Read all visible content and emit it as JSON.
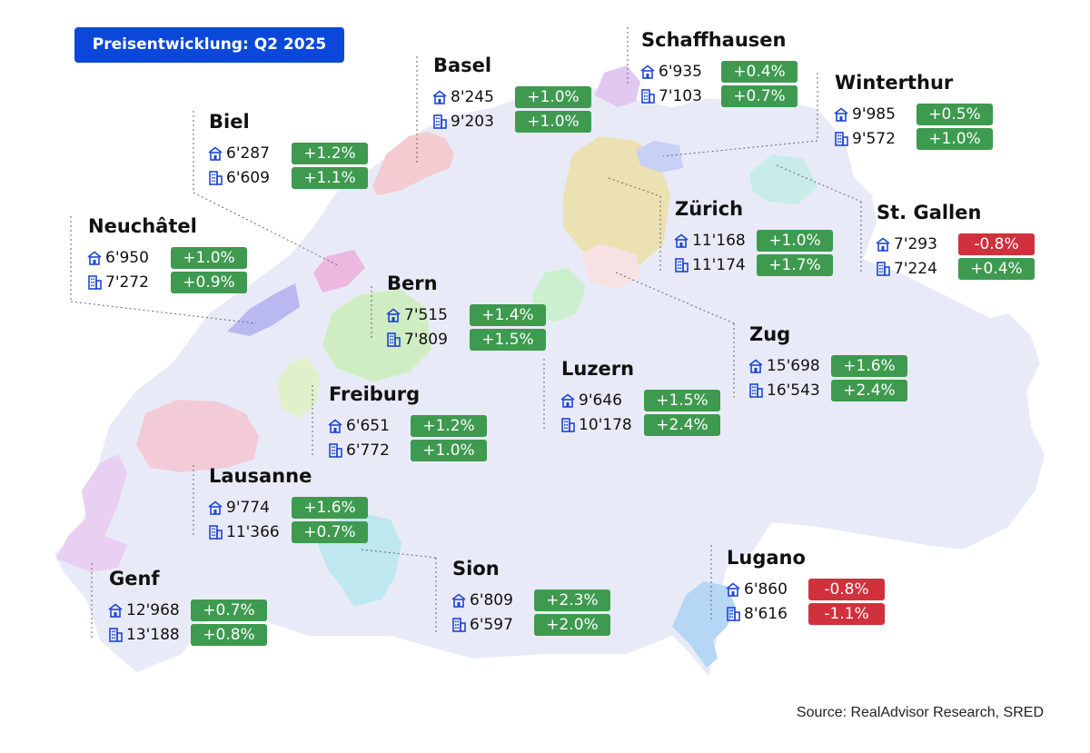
{
  "title": "Preisentwicklung: Q2 2025",
  "source": "Source: RealAdvisor Research, SRED",
  "colors": {
    "accent": "#0b48d9",
    "positive": "#3d9a4f",
    "negative": "#d0313c",
    "country": "#e8ebf7",
    "icon": "#1f45d6"
  },
  "icons": {
    "house": "house-icon",
    "apartment": "apartment-building-icon"
  },
  "cities": [
    {
      "id": "schaffhausen",
      "name": "Schaffhausen",
      "house": {
        "price": "6'935",
        "change": "+0.4%"
      },
      "apartment": {
        "price": "7'103",
        "change": "+0.7%"
      }
    },
    {
      "id": "basel",
      "name": "Basel",
      "house": {
        "price": "8'245",
        "change": "+1.0%"
      },
      "apartment": {
        "price": "9'203",
        "change": "+1.0%"
      }
    },
    {
      "id": "winterthur",
      "name": "Winterthur",
      "house": {
        "price": "9'985",
        "change": "+0.5%"
      },
      "apartment": {
        "price": "9'572",
        "change": "+1.0%"
      }
    },
    {
      "id": "biel",
      "name": "Biel",
      "house": {
        "price": "6'287",
        "change": "+1.2%"
      },
      "apartment": {
        "price": "6'609",
        "change": "+1.1%"
      }
    },
    {
      "id": "neuchatel",
      "name": "Neuchâtel",
      "house": {
        "price": "6'950",
        "change": "+1.0%"
      },
      "apartment": {
        "price": "7'272",
        "change": "+0.9%"
      }
    },
    {
      "id": "zurich",
      "name": "Zürich",
      "house": {
        "price": "11'168",
        "change": "+1.0%"
      },
      "apartment": {
        "price": "11'174",
        "change": "+1.7%"
      }
    },
    {
      "id": "stgallen",
      "name": "St. Gallen",
      "house": {
        "price": "7'293",
        "change": "-0.8%"
      },
      "apartment": {
        "price": "7'224",
        "change": "+0.4%"
      }
    },
    {
      "id": "bern",
      "name": "Bern",
      "house": {
        "price": "7'515",
        "change": "+1.4%"
      },
      "apartment": {
        "price": "7'809",
        "change": "+1.5%"
      }
    },
    {
      "id": "zug",
      "name": "Zug",
      "house": {
        "price": "15'698",
        "change": "+1.6%"
      },
      "apartment": {
        "price": "16'543",
        "change": "+2.4%"
      }
    },
    {
      "id": "luzern",
      "name": "Luzern",
      "house": {
        "price": "9'646",
        "change": "+1.5%"
      },
      "apartment": {
        "price": "10'178",
        "change": "+2.4%"
      }
    },
    {
      "id": "freiburg",
      "name": "Freiburg",
      "house": {
        "price": "6'651",
        "change": "+1.2%"
      },
      "apartment": {
        "price": "6'772",
        "change": "+1.0%"
      }
    },
    {
      "id": "lausanne",
      "name": "Lausanne",
      "house": {
        "price": "9'774",
        "change": "+1.6%"
      },
      "apartment": {
        "price": "11'366",
        "change": "+0.7%"
      }
    },
    {
      "id": "genf",
      "name": "Genf",
      "house": {
        "price": "12'968",
        "change": "+0.7%"
      },
      "apartment": {
        "price": "13'188",
        "change": "+0.8%"
      }
    },
    {
      "id": "sion",
      "name": "Sion",
      "house": {
        "price": "6'809",
        "change": "+2.3%"
      },
      "apartment": {
        "price": "6'597",
        "change": "+2.0%"
      }
    },
    {
      "id": "lugano",
      "name": "Lugano",
      "house": {
        "price": "6'860",
        "change": "-0.8%"
      },
      "apartment": {
        "price": "8'616",
        "change": "-1.1%"
      }
    }
  ]
}
